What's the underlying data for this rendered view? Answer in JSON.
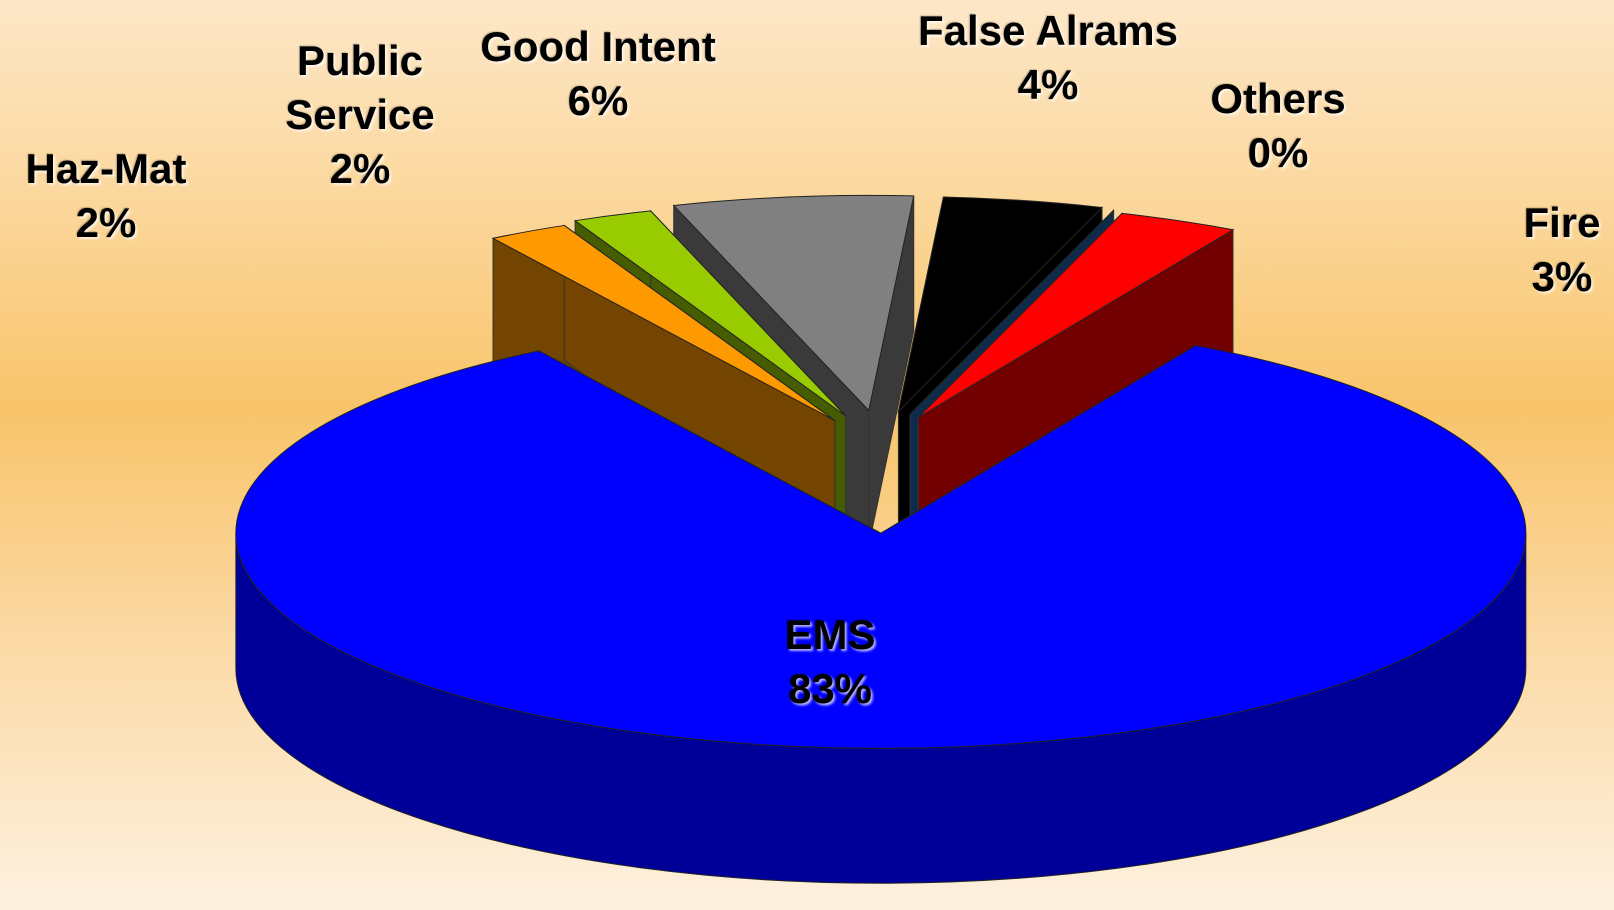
{
  "chart_data": {
    "type": "pie",
    "categories": [
      "False Alrams",
      "Others",
      "Fire",
      "EMS",
      "Haz-Mat",
      "Public Service",
      "Good Intent"
    ],
    "values": [
      4,
      0,
      3,
      83,
      2,
      2,
      6
    ],
    "value_labels": [
      "4%",
      "0%",
      "3%",
      "83%",
      "2%",
      "2%",
      "6%"
    ],
    "colors": [
      "#000000",
      "#1f5fa8",
      "#ff0000",
      "#0000ff",
      "#ff9900",
      "#99cc00",
      "#808080"
    ]
  }
}
